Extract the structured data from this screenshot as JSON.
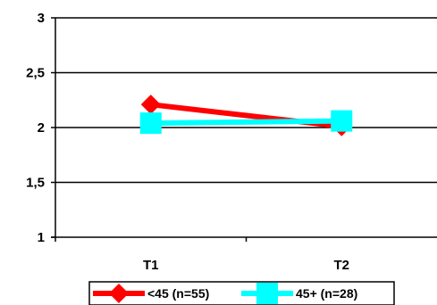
{
  "chart_data": {
    "type": "line",
    "categories": [
      "T1",
      "T2"
    ],
    "series": [
      {
        "name": "<45 (n=55)",
        "values": [
          2.21,
          2.01
        ],
        "color": "#ff0000",
        "marker": "diamond"
      },
      {
        "name": "45+ (n=28)",
        "values": [
          2.04,
          2.06
        ],
        "color": "#00ffff",
        "marker": "square"
      }
    ],
    "ylim": [
      1,
      3
    ],
    "yticks": [
      1,
      1.5,
      2,
      2.5,
      3
    ],
    "ytick_labels": [
      "1",
      "1,5",
      "2",
      "2,5",
      "3"
    ],
    "grid": true,
    "legend_position": "bottom"
  }
}
